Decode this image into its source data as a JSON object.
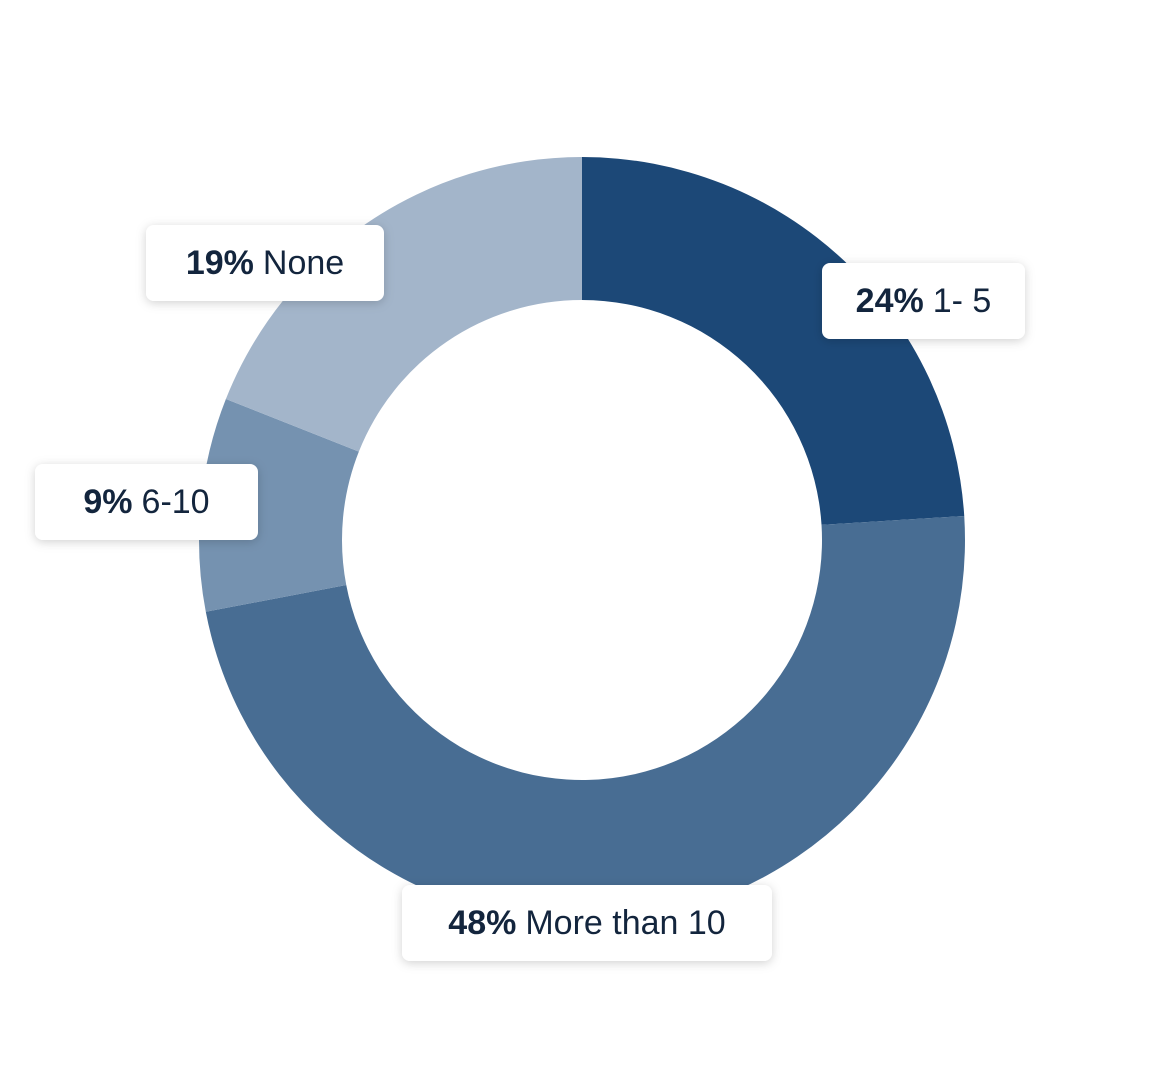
{
  "chart_data": {
    "type": "donut",
    "categories": [
      "1- 5",
      "More than 10",
      "6-10",
      "None"
    ],
    "values": [
      24,
      48,
      9,
      19
    ],
    "value_labels": [
      "24%",
      "48%",
      "9%",
      "19%"
    ],
    "colors": [
      "#1c4877",
      "#486d93",
      "#7592b0",
      "#a3b5ca"
    ]
  }
}
